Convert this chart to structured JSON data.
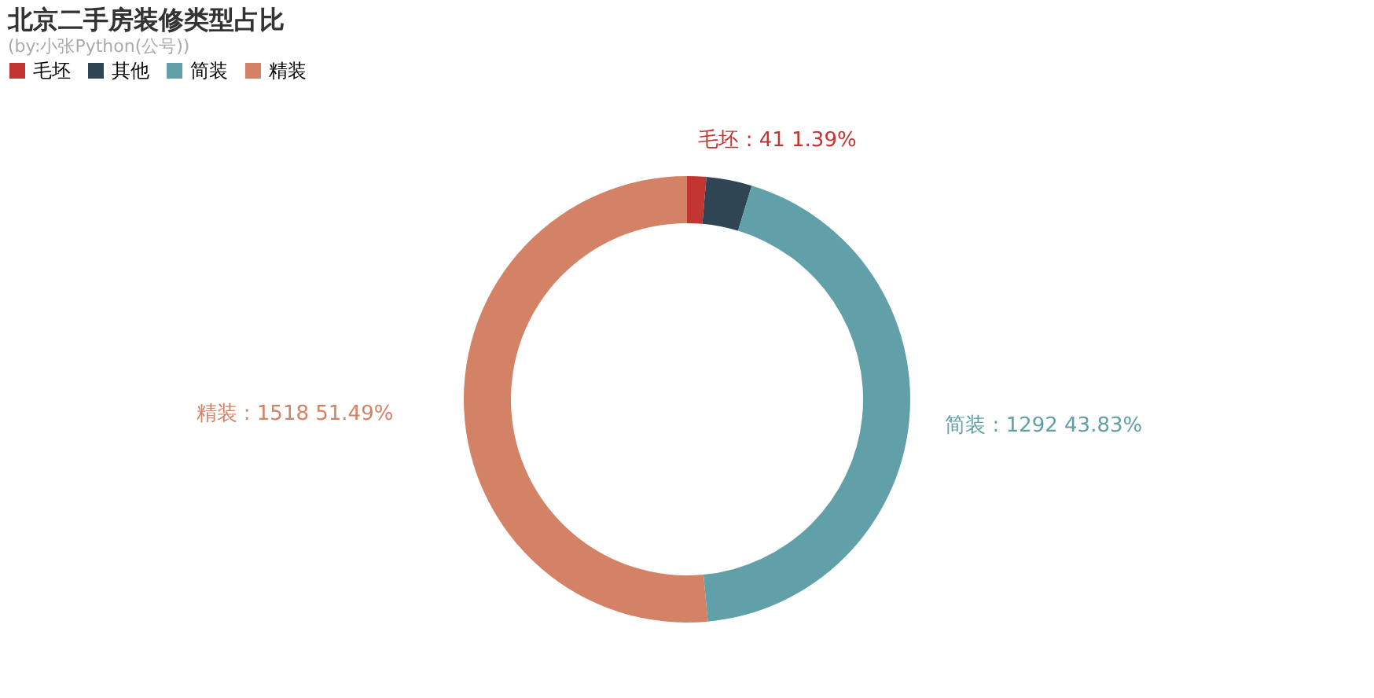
{
  "chart_data": {
    "type": "donut",
    "title": "北京二手房装修类型占比",
    "subtitle": "(by:小张Python(公号))",
    "categories": [
      "毛坯",
      "其他",
      "简装",
      "精装"
    ],
    "values": [
      41,
      97,
      1292,
      1518
    ],
    "colors": [
      "#c23531",
      "#2f4554",
      "#61a0a8",
      "#d48265"
    ],
    "value_labels": [
      "毛坯 : 41  1.39%",
      null,
      "简装 : 1292  43.83%",
      "精装 : 1518  51.49%"
    ],
    "legend": "top"
  }
}
